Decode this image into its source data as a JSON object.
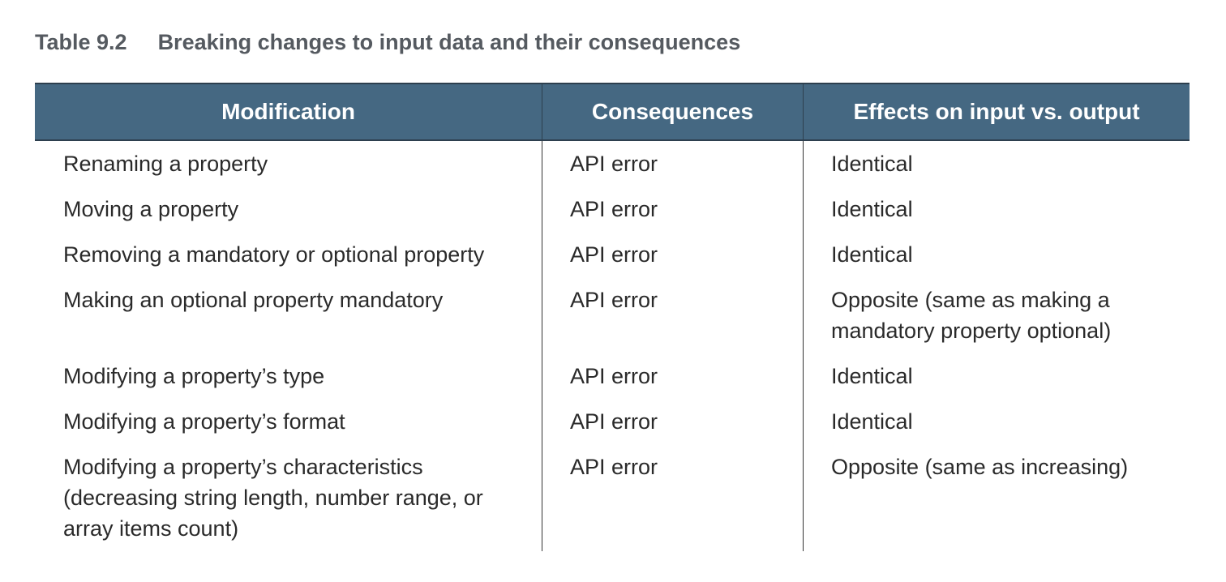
{
  "caption": {
    "number": "Table 9.2",
    "title": "Breaking changes to input data and their consequences"
  },
  "table": {
    "headers": [
      "Modification",
      "Consequences",
      "Effects on input vs. output"
    ],
    "rows": [
      {
        "modification": [
          "Renaming a property"
        ],
        "consequences": [
          "API error"
        ],
        "effects": [
          "Identical"
        ]
      },
      {
        "modification": [
          "Moving a property"
        ],
        "consequences": [
          "API error"
        ],
        "effects": [
          "Identical"
        ]
      },
      {
        "modification": [
          "Removing a mandatory or optional property"
        ],
        "consequences": [
          "API error"
        ],
        "effects": [
          "Identical"
        ]
      },
      {
        "modification": [
          "Making an optional property mandatory"
        ],
        "consequences": [
          "API error"
        ],
        "effects": [
          "Opposite (same as making a",
          "mandatory property optional)"
        ]
      },
      {
        "modification": [
          "Modifying a property’s type"
        ],
        "consequences": [
          "API error"
        ],
        "effects": [
          "Identical"
        ]
      },
      {
        "modification": [
          "Modifying a property’s format"
        ],
        "consequences": [
          "API error"
        ],
        "effects": [
          "Identical"
        ]
      },
      {
        "modification": [
          "Modifying a property’s characteristics",
          "(decreasing string length, number range, or",
          "array items count)"
        ],
        "consequences": [
          "API error"
        ],
        "effects": [
          "Opposite (same as increasing)"
        ]
      }
    ]
  },
  "colors": {
    "header_bg": "#456882",
    "header_text": "#ffffff",
    "caption_text": "#555a60",
    "body_text": "#2a2a2a"
  }
}
